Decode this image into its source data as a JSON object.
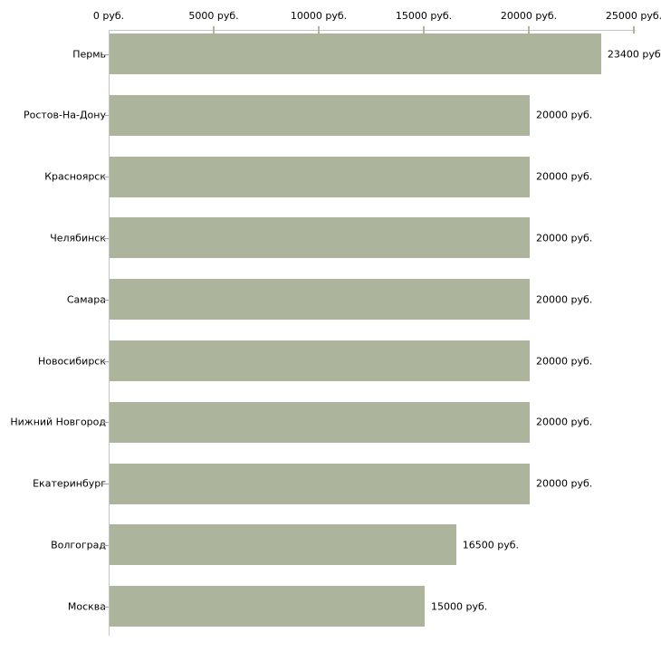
{
  "chart_data": {
    "type": "bar",
    "orientation": "horizontal",
    "title": "",
    "xlabel": "",
    "ylabel": "",
    "unit": "руб.",
    "xlim": [
      0,
      25000
    ],
    "grid": false,
    "legend": "none",
    "x_ticks": [
      {
        "value": 0,
        "label": "0 руб."
      },
      {
        "value": 5000,
        "label": "5000 руб."
      },
      {
        "value": 10000,
        "label": "10000 руб."
      },
      {
        "value": 15000,
        "label": "15000 руб."
      },
      {
        "value": 20000,
        "label": "20000 руб."
      },
      {
        "value": 25000,
        "label": "25000 руб."
      }
    ],
    "categories": [
      "Пермь",
      "Ростов-На-Дону",
      "Красноярск",
      "Челябинск",
      "Самара",
      "Новосибирск",
      "Нижний Новгород",
      "Екатеринбург",
      "Волгоград",
      "Москва"
    ],
    "values": [
      23400,
      20000,
      20000,
      20000,
      20000,
      20000,
      20000,
      20000,
      16500,
      15000
    ],
    "value_labels": [
      "23400 руб.",
      "20000 руб.",
      "20000 руб.",
      "20000 руб.",
      "20000 руб.",
      "20000 руб.",
      "20000 руб.",
      "20000 руб.",
      "16500 руб.",
      "15000 руб."
    ],
    "colors": {
      "bar": "#acb49c",
      "axis_line": "#c4c4c4",
      "tick_mark": "#b5b593",
      "category_dash": "#a3a39b",
      "text": "#000000",
      "background": "#ffffff"
    }
  }
}
